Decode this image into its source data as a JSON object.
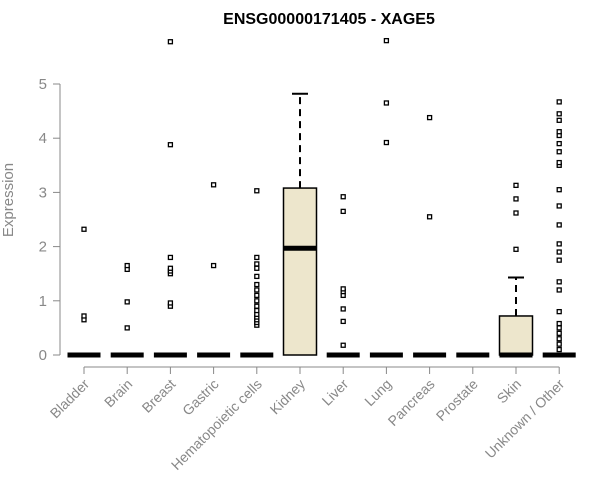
{
  "chart_data": {
    "type": "boxplot",
    "title": "ENSG00000171405 - XAGE5",
    "ylabel": "Expression",
    "xlabel": "",
    "ylim": [
      0,
      5.5
    ],
    "yticks": [
      0,
      1,
      2,
      3,
      4,
      5
    ],
    "box_fill": "#ede6cc",
    "categories": [
      "Bladder",
      "Brain",
      "Breast",
      "Gastric",
      "Hematopoietic cells",
      "Kidney",
      "Liver",
      "Lung",
      "Pancreas",
      "Prostate",
      "Skin",
      "Unknown / Other"
    ],
    "boxes": [
      {
        "name": "Bladder",
        "min": 0,
        "q1": 0,
        "median": 0,
        "q3": 0,
        "max": 0,
        "outliers": [
          0.65,
          0.72,
          2.32
        ]
      },
      {
        "name": "Brain",
        "min": 0,
        "q1": 0,
        "median": 0,
        "q3": 0,
        "max": 0,
        "outliers": [
          0.5,
          0.98,
          1.58,
          1.65
        ]
      },
      {
        "name": "Breast",
        "min": 0,
        "q1": 0,
        "median": 0,
        "q3": 0,
        "max": 0,
        "outliers": [
          0.9,
          0.96,
          1.5,
          1.55,
          1.6,
          1.8,
          3.88,
          5.78
        ]
      },
      {
        "name": "Gastric",
        "min": 0,
        "q1": 0,
        "median": 0,
        "q3": 0,
        "max": 0,
        "outliers": [
          1.65,
          3.14
        ]
      },
      {
        "name": "Hematopoietic cells",
        "min": 0,
        "q1": 0,
        "median": 0,
        "q3": 0,
        "max": 0,
        "outliers": [
          0.55,
          0.6,
          0.65,
          0.7,
          0.75,
          0.82,
          0.9,
          1.0,
          1.1,
          1.2,
          1.3,
          1.45,
          1.6,
          1.68,
          1.8,
          3.03
        ]
      },
      {
        "name": "Kidney",
        "min": 0,
        "q1": 0,
        "median": 1.97,
        "q3": 3.08,
        "max": 4.82,
        "outliers": []
      },
      {
        "name": "Liver",
        "min": 0,
        "q1": 0,
        "median": 0,
        "q3": 0,
        "max": 0,
        "outliers": [
          0.18,
          0.62,
          0.85,
          1.1,
          1.17,
          1.22,
          2.65,
          2.92
        ]
      },
      {
        "name": "Lung",
        "min": 0,
        "q1": 0,
        "median": 0,
        "q3": 0,
        "max": 0,
        "outliers": [
          3.92,
          4.65,
          5.8
        ]
      },
      {
        "name": "Pancreas",
        "min": 0,
        "q1": 0,
        "median": 0,
        "q3": 0,
        "max": 0,
        "outliers": [
          2.55,
          4.38
        ]
      },
      {
        "name": "Prostate",
        "min": 0,
        "q1": 0,
        "median": 0,
        "q3": 0,
        "max": 0,
        "outliers": []
      },
      {
        "name": "Skin",
        "min": 0,
        "q1": 0,
        "median": 0,
        "q3": 0.72,
        "max": 1.43,
        "outliers": [
          1.95,
          2.62,
          2.88,
          3.13
        ]
      },
      {
        "name": "Unknown / Other",
        "min": 0,
        "q1": 0,
        "median": 0,
        "q3": 0,
        "max": 0,
        "outliers": [
          0.1,
          0.2,
          0.3,
          0.4,
          0.5,
          0.58,
          0.8,
          1.2,
          1.35,
          1.75,
          1.9,
          2.05,
          2.4,
          2.75,
          3.05,
          3.5,
          3.55,
          3.75,
          3.9,
          4.05,
          4.12,
          4.33,
          4.45,
          4.67
        ]
      }
    ]
  }
}
